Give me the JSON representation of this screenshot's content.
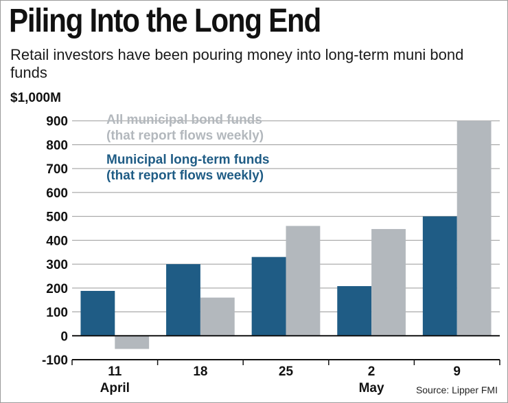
{
  "title": "Piling Into the Long End",
  "subtitle": "Retail investors have been pouring money into long-term muni bond funds",
  "source": "Source: Lipper FMI",
  "colors": {
    "long_term": "#1f5c85",
    "all_funds": "#b3b8bd",
    "grid": "#999999",
    "axis": "#111111"
  },
  "chart_data": {
    "type": "bar",
    "categories": [
      "11",
      "18",
      "25",
      "2",
      "9"
    ],
    "category_groups": [
      "April",
      "",
      "",
      "May",
      ""
    ],
    "series": [
      {
        "name": "Municipal long-term funds (that report flows weekly)",
        "legend_lines": [
          "Municipal long-term funds",
          "(that report flows weekly)"
        ],
        "color": "#1f5c85",
        "values": [
          188,
          300,
          330,
          208,
          500
        ]
      },
      {
        "name": "All municipal bond funds (that report flows weekly)",
        "legend_lines": [
          "All municipal bond funds",
          "(that report flows weekly)"
        ],
        "color": "#b3b8bd",
        "values": [
          -55,
          160,
          460,
          447,
          900
        ]
      }
    ],
    "ylim": [
      -100,
      1000
    ],
    "yticks": [
      -100,
      0,
      100,
      200,
      300,
      400,
      500,
      600,
      700,
      800,
      900
    ],
    "ytick_labels": [
      "-100",
      "0",
      "100",
      "200",
      "300",
      "400",
      "500",
      "600",
      "700",
      "800",
      "900"
    ],
    "y_top_label": "$1,000M",
    "grid": true,
    "legend_position": "top-left"
  }
}
